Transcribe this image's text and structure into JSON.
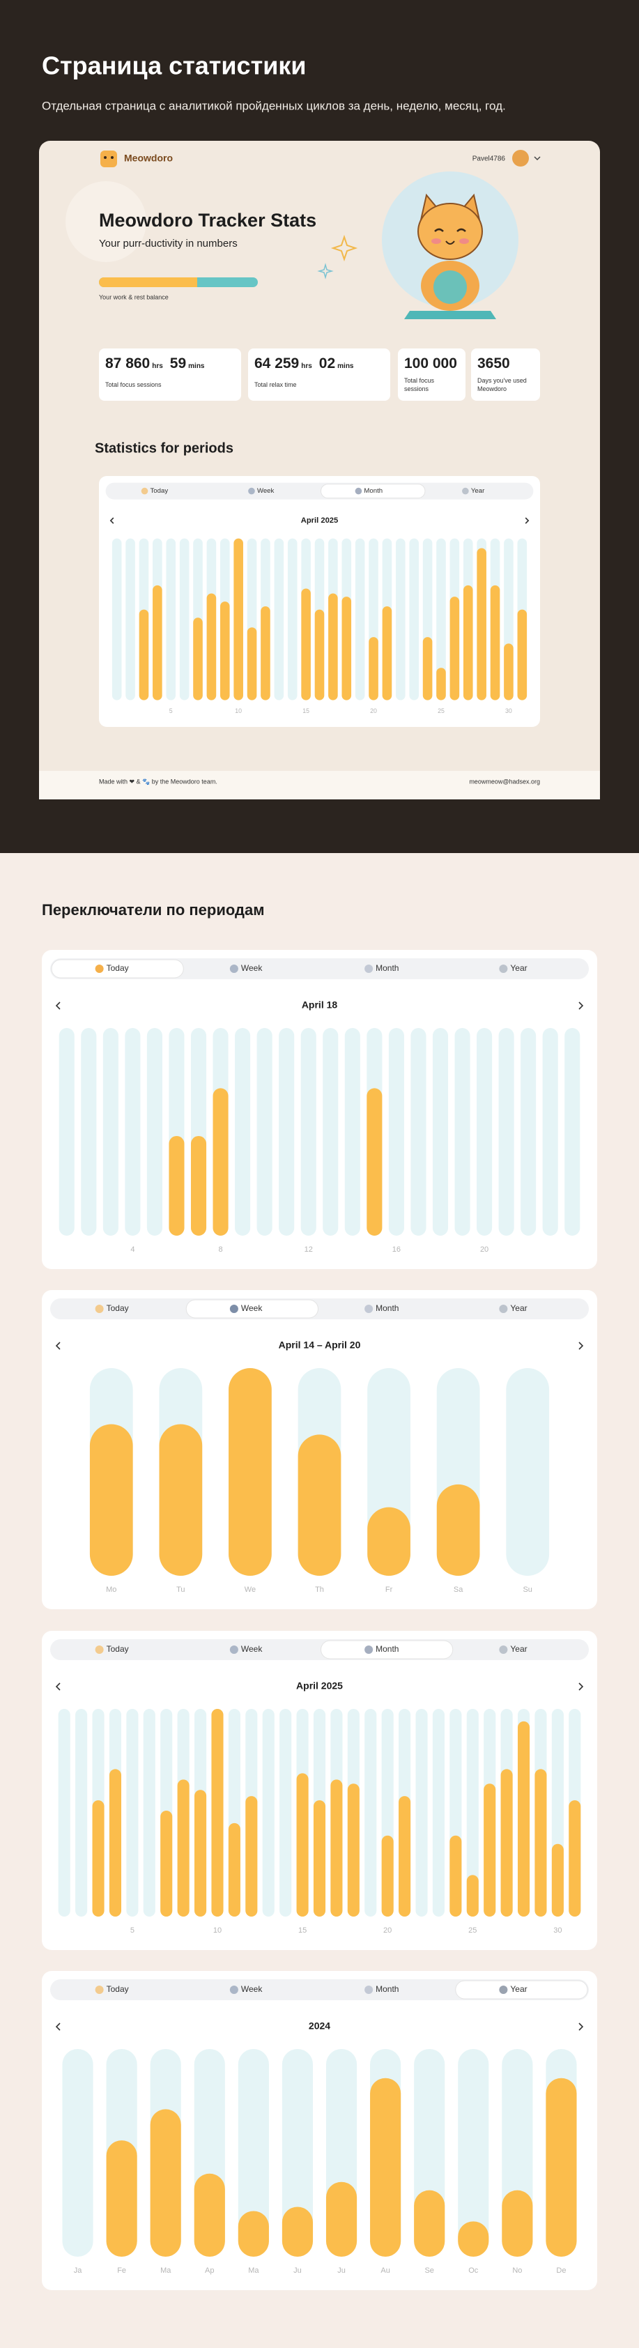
{
  "header": {
    "title": "Страница статистики",
    "subtitle": "Отдельная страница с аналитикой пройденных циклов за день, неделю, месяц, год."
  },
  "app": {
    "logo": "Meowdoro",
    "user": "Pavel4786",
    "hero_title": "Meowdoro Tracker Stats",
    "hero_subtitle": "Your purr-ductivity in numbers",
    "balance_label": "Your work & rest balance",
    "stats": [
      {
        "value": "87 860",
        "unit": "hrs",
        "value2": "59",
        "unit2": "mins",
        "label": "Total focus sessions"
      },
      {
        "value": "64 259",
        "unit": "hrs",
        "value2": "02",
        "unit2": "mins",
        "label": "Total relax time"
      },
      {
        "value": "100 000",
        "label": "Total focus sessions"
      },
      {
        "value": "3650",
        "label": "Days you've used Meowdoro"
      }
    ],
    "section_title": "Statistics for periods",
    "footer_left": "Made with ❤ & 🐾 by the Meowdoro team.",
    "footer_right": "meowmeow@hadsex.org"
  },
  "switchers_title": "Переключатели по периодам",
  "tabs": [
    "Today",
    "Week",
    "Month",
    "Year"
  ],
  "chart_data": [
    {
      "type": "bar",
      "title": "April 18",
      "active_tab": "Today",
      "categories": [
        null,
        null,
        null,
        "4",
        null,
        null,
        null,
        "8",
        null,
        null,
        null,
        "12",
        null,
        null,
        null,
        "16",
        null,
        null,
        null,
        "20",
        null,
        null,
        null,
        null
      ],
      "values": [
        0,
        0,
        0,
        0,
        0,
        48,
        48,
        71,
        0,
        0,
        0,
        0,
        0,
        0,
        71,
        0,
        0,
        0,
        0,
        0,
        0,
        0,
        0,
        0
      ],
      "ylim": [
        0,
        100
      ],
      "color": "#fbbd4c",
      "track_color": "#e5f4f6"
    },
    {
      "type": "bar",
      "title": "April 14 – April 20",
      "active_tab": "Week",
      "categories": [
        "Mo",
        "Tu",
        "We",
        "Th",
        "Fr",
        "Sa",
        "Su"
      ],
      "values": [
        73,
        73,
        100,
        68,
        33,
        44,
        0
      ],
      "ylim": [
        0,
        100
      ],
      "color": "#fbbd4c",
      "track_color": "#e5f4f6"
    },
    {
      "type": "bar",
      "title": "April 2025",
      "active_tab": "Month",
      "categories": [
        null,
        null,
        null,
        null,
        "5",
        null,
        null,
        null,
        null,
        "10",
        null,
        null,
        null,
        null,
        "15",
        null,
        null,
        null,
        null,
        "20",
        null,
        null,
        null,
        null,
        "25",
        null,
        null,
        null,
        null,
        "30",
        null
      ],
      "values": [
        0,
        0,
        56,
        71,
        0,
        0,
        51,
        66,
        61,
        100,
        45,
        58,
        0,
        0,
        69,
        56,
        66,
        64,
        0,
        39,
        58,
        0,
        0,
        39,
        20,
        64,
        71,
        94,
        71,
        35,
        56
      ],
      "ylim": [
        0,
        100
      ],
      "color": "#fbbd4c",
      "track_color": "#e5f4f6"
    },
    {
      "type": "bar",
      "title": "2024",
      "active_tab": "Year",
      "categories": [
        "Ja",
        "Fe",
        "Ma",
        "Ap",
        "Ma",
        "Ju",
        "Ju",
        "Au",
        "Se",
        "Oc",
        "No",
        "De"
      ],
      "values": [
        0,
        56,
        71,
        40,
        22,
        24,
        36,
        86,
        32,
        17,
        32,
        86
      ],
      "ylim": [
        0,
        100
      ],
      "color": "#fbbd4c",
      "track_color": "#e5f4f6"
    }
  ]
}
